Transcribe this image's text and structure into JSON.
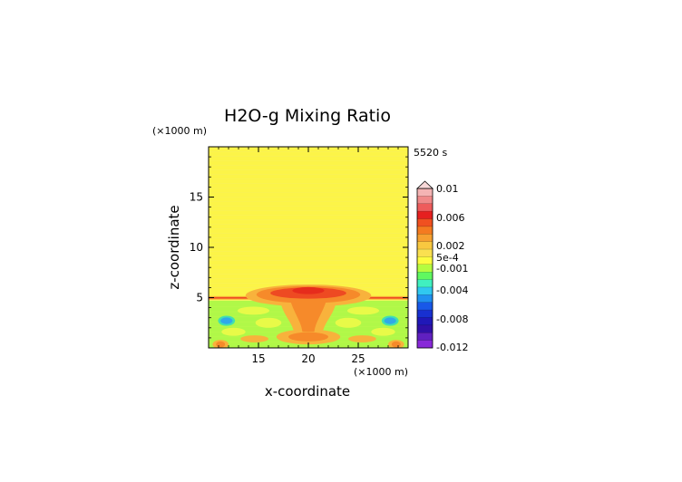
{
  "chart_data": {
    "type": "heatmap",
    "title": "H2O-g Mixing Ratio",
    "xlabel": "x-coordinate",
    "ylabel": "z-coordinate",
    "x_unit": "(×1000 m)",
    "y_unit": "(×1000 m)",
    "time_label": "5520 s",
    "xlim": [
      10,
      30
    ],
    "ylim": [
      0,
      20
    ],
    "x_ticks": [
      15,
      20,
      25
    ],
    "y_ticks": [
      5,
      10,
      15
    ],
    "colorbar": {
      "labels": [
        "0.01",
        "0.006",
        "0.002",
        "5e-4",
        "-0.001",
        "-0.004",
        "-0.008",
        "-0.012"
      ],
      "colors": [
        "#f4b4b4",
        "#f08a8a",
        "#ee5c5c",
        "#e62020",
        "#f05020",
        "#f47a20",
        "#f6a030",
        "#f8c840",
        "#fae050",
        "#fcfc40",
        "#b4fc40",
        "#60f860",
        "#40f0c0",
        "#30c8f0",
        "#2090f0",
        "#1858e8",
        "#1830d0",
        "#2018b8",
        "#3010a8",
        "#6020c0",
        "#8828d8"
      ]
    },
    "regions": [
      {
        "name": "upper layer",
        "x": [
          10,
          30
        ],
        "z": [
          4.7,
          20
        ],
        "value": "5e-4 to 0.002"
      },
      {
        "name": "inversion band",
        "x": [
          10,
          30
        ],
        "z": [
          4.9,
          5.1
        ],
        "value": "0.006"
      },
      {
        "name": "central plume",
        "x": [
          16,
          24
        ],
        "z": [
          0,
          6
        ],
        "value": "0.006 to 0.01"
      },
      {
        "name": "lower layer",
        "x": [
          10,
          30
        ],
        "z": [
          0,
          4.7
        ],
        "value": "-0.001"
      },
      {
        "name": "blue eddies",
        "x": [
          11.5,
          28.5
        ],
        "z": [
          2.5,
          3.0
        ],
        "value": "-0.004"
      }
    ]
  }
}
